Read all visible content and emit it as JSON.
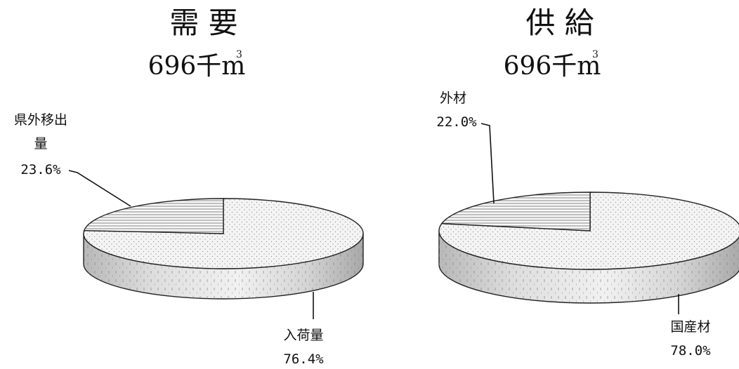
{
  "chart_data": [
    {
      "type": "pie",
      "title": "需 要",
      "total": "696千m",
      "unit_superscript": "3",
      "slices": [
        {
          "label_lines": [
            "県外移出",
            "量"
          ],
          "value": 23.6,
          "value_text": "23.6%",
          "fill": "hatch-horizontal"
        },
        {
          "label_lines": [
            "入荷量"
          ],
          "value": 76.4,
          "value_text": "76.4%",
          "fill": "dotted"
        }
      ]
    },
    {
      "type": "pie",
      "title": "供 給",
      "total": "696千m",
      "unit_superscript": "3",
      "slices": [
        {
          "label_lines": [
            "外材"
          ],
          "value": 22.0,
          "value_text": "22.0%",
          "fill": "hatch-horizontal"
        },
        {
          "label_lines": [
            "国産材"
          ],
          "value": 78.0,
          "value_text": "78.0%",
          "fill": "dotted"
        }
      ]
    }
  ]
}
